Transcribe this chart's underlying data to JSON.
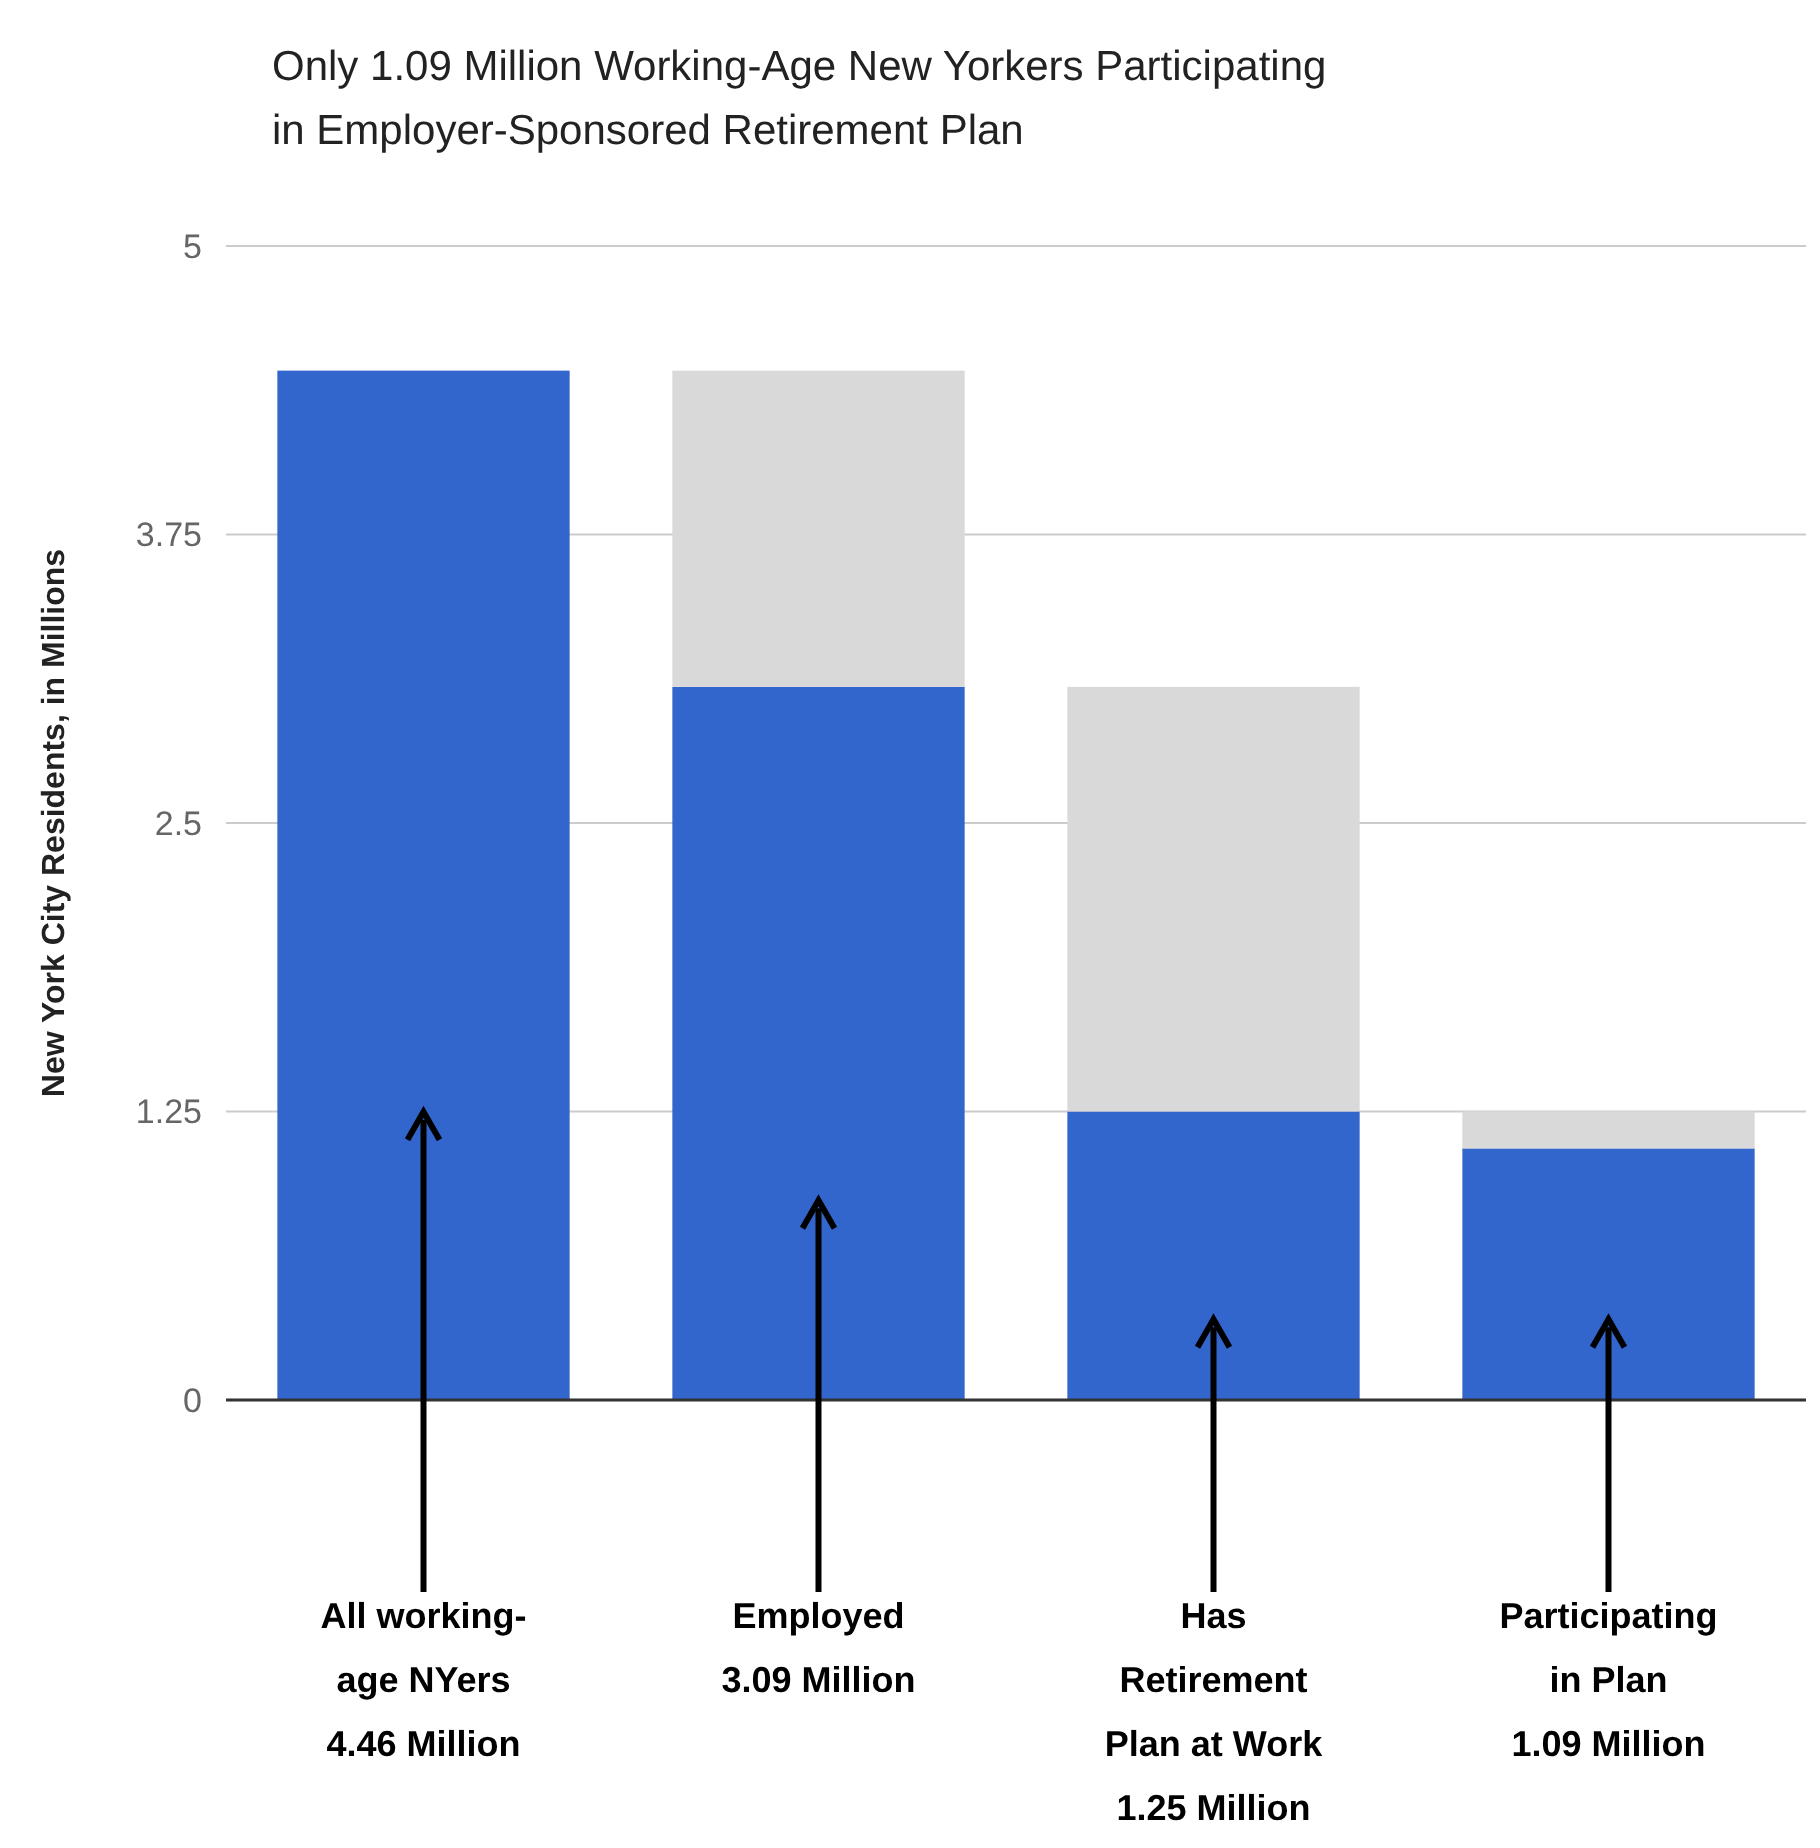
{
  "chart_data": {
    "type": "bar",
    "title": "Only 1.09 Million Working-Age New Yorkers Participating\nin Employer-Sponsored Retirement Plan",
    "ylabel": "New York City Residents, in Millions",
    "categories": [
      "All working-\nage NYers\n4.46 Million",
      "Employed\n3.09 Million",
      "Has\nRetirement\nPlan at Work\n1.25 Million",
      "Participating\nin Plan\n1.09 Million"
    ],
    "stacked": true,
    "series": [
      {
        "color": "#3366cc",
        "values": [
          4.46,
          3.09,
          1.25,
          1.09
        ]
      },
      {
        "color": "#d9d9d9",
        "values": [
          0,
          1.37,
          1.84,
          0.16
        ]
      }
    ],
    "ylim": [
      0,
      5
    ],
    "yticks": [
      0,
      1.25,
      2.5,
      3.75,
      5
    ],
    "grid": "y"
  }
}
